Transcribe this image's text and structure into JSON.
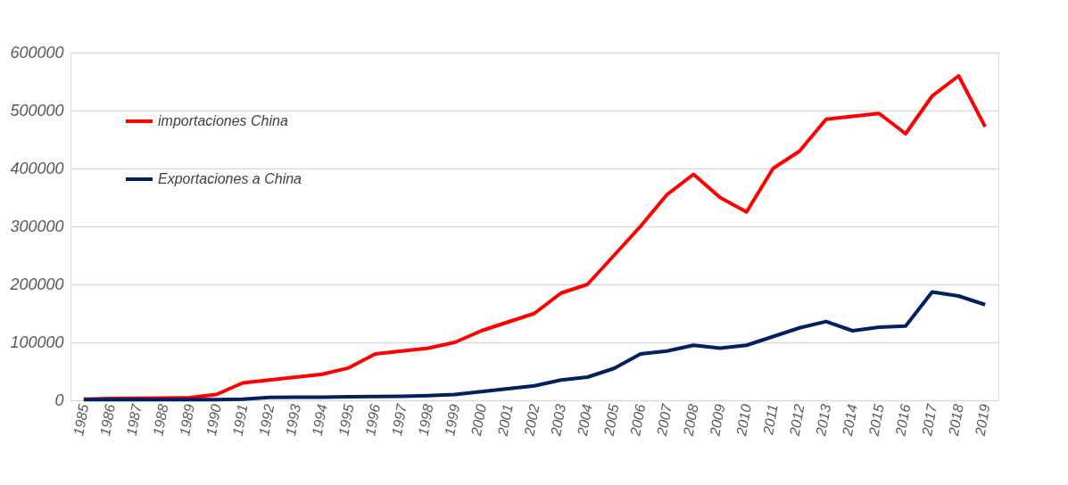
{
  "chart_data": {
    "type": "line",
    "categories": [
      "1985",
      "1986",
      "1987",
      "1988",
      "1989",
      "1990",
      "1991",
      "1992",
      "1993",
      "1994",
      "1995",
      "1996",
      "1997",
      "1998",
      "1999",
      "2000",
      "2001",
      "2002",
      "2003",
      "2004",
      "2005",
      "2006",
      "2007",
      "2008",
      "2009",
      "2010",
      "2011",
      "2012",
      "2013",
      "2014",
      "2015",
      "2016",
      "2017",
      "2018",
      "2019"
    ],
    "series": [
      {
        "name": "importaciones China",
        "color": "#ff0000",
        "values": [
          2000,
          3000,
          3500,
          4000,
          4500,
          10000,
          30000,
          35000,
          40000,
          45000,
          56000,
          80000,
          85000,
          90000,
          100000,
          120000,
          135000,
          150000,
          185000,
          200000,
          250000,
          300000,
          355000,
          390000,
          350000,
          325000,
          400000,
          430000,
          485000,
          490000,
          495000,
          460000,
          525000,
          560000,
          472000
        ]
      },
      {
        "name": "Exportaciones a China",
        "color": "#002060",
        "values": [
          1000,
          1000,
          1000,
          1000,
          1000,
          1000,
          2000,
          5000,
          5500,
          5500,
          6000,
          6500,
          7000,
          8000,
          10000,
          15000,
          20000,
          25000,
          35000,
          40000,
          55000,
          80000,
          85000,
          95000,
          90000,
          95000,
          110000,
          125000,
          136000,
          120000,
          126000,
          128000,
          187000,
          180000,
          165000
        ]
      }
    ],
    "ylim": [
      0,
      600000
    ],
    "yticks": [
      0,
      100000,
      200000,
      300000,
      400000,
      500000,
      600000
    ],
    "grid": "y",
    "legend": "top left",
    "marker": "none",
    "line_style": "solid"
  }
}
